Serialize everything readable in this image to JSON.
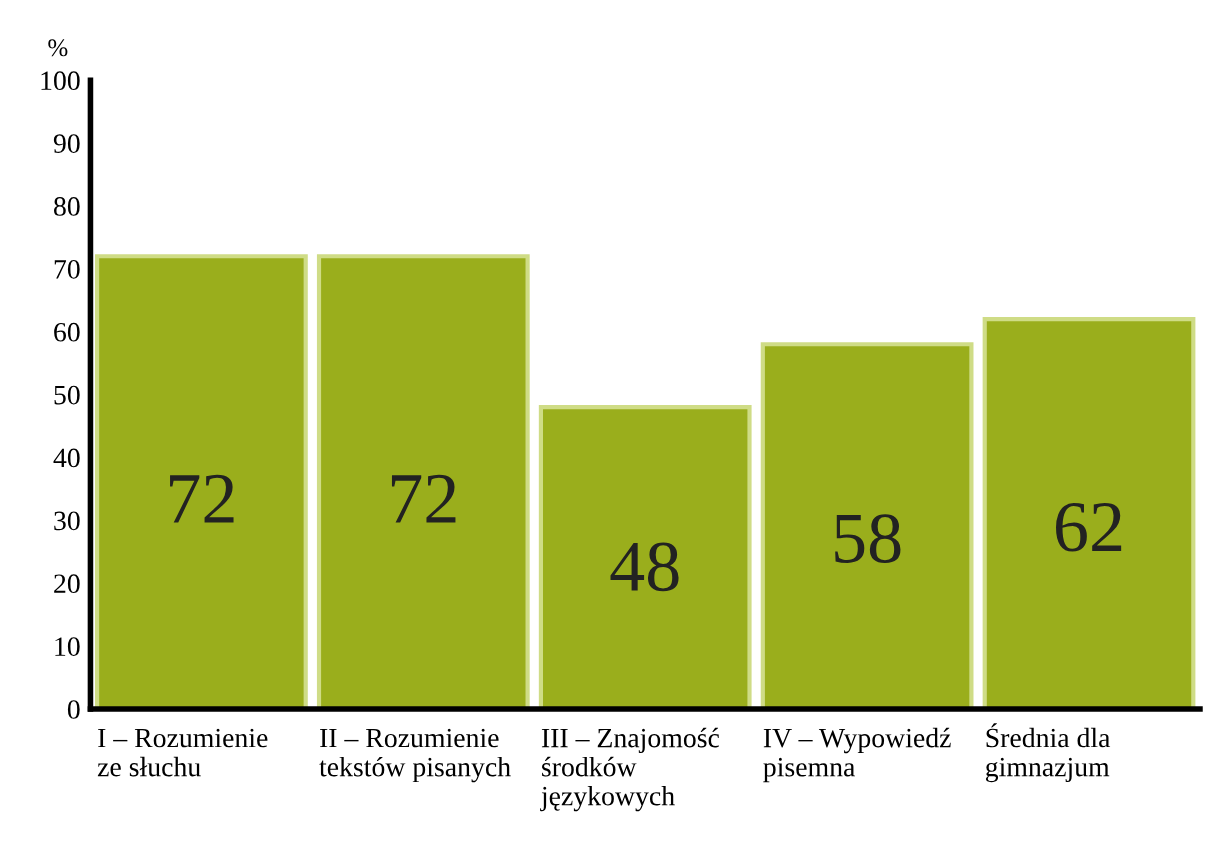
{
  "chart_data": {
    "type": "bar",
    "ylabel": "%",
    "categories": [
      "I – Rozumienie\nze słuchu",
      "II – Rozumienie\ntekstów pisanych",
      "III – Znajomość\nśrodków\njęzykowych",
      "IV – Wypowiedź\npisemna",
      "Średnia dla\ngimnazjum"
    ],
    "values": [
      72,
      72,
      48,
      58,
      62
    ],
    "color": "#9aae1c",
    "ylim": [
      0,
      100
    ],
    "yticks": [
      0,
      10,
      20,
      30,
      40,
      50,
      60,
      70,
      80,
      90,
      100
    ],
    "data_labels": true,
    "grid": false,
    "legend": false
  }
}
